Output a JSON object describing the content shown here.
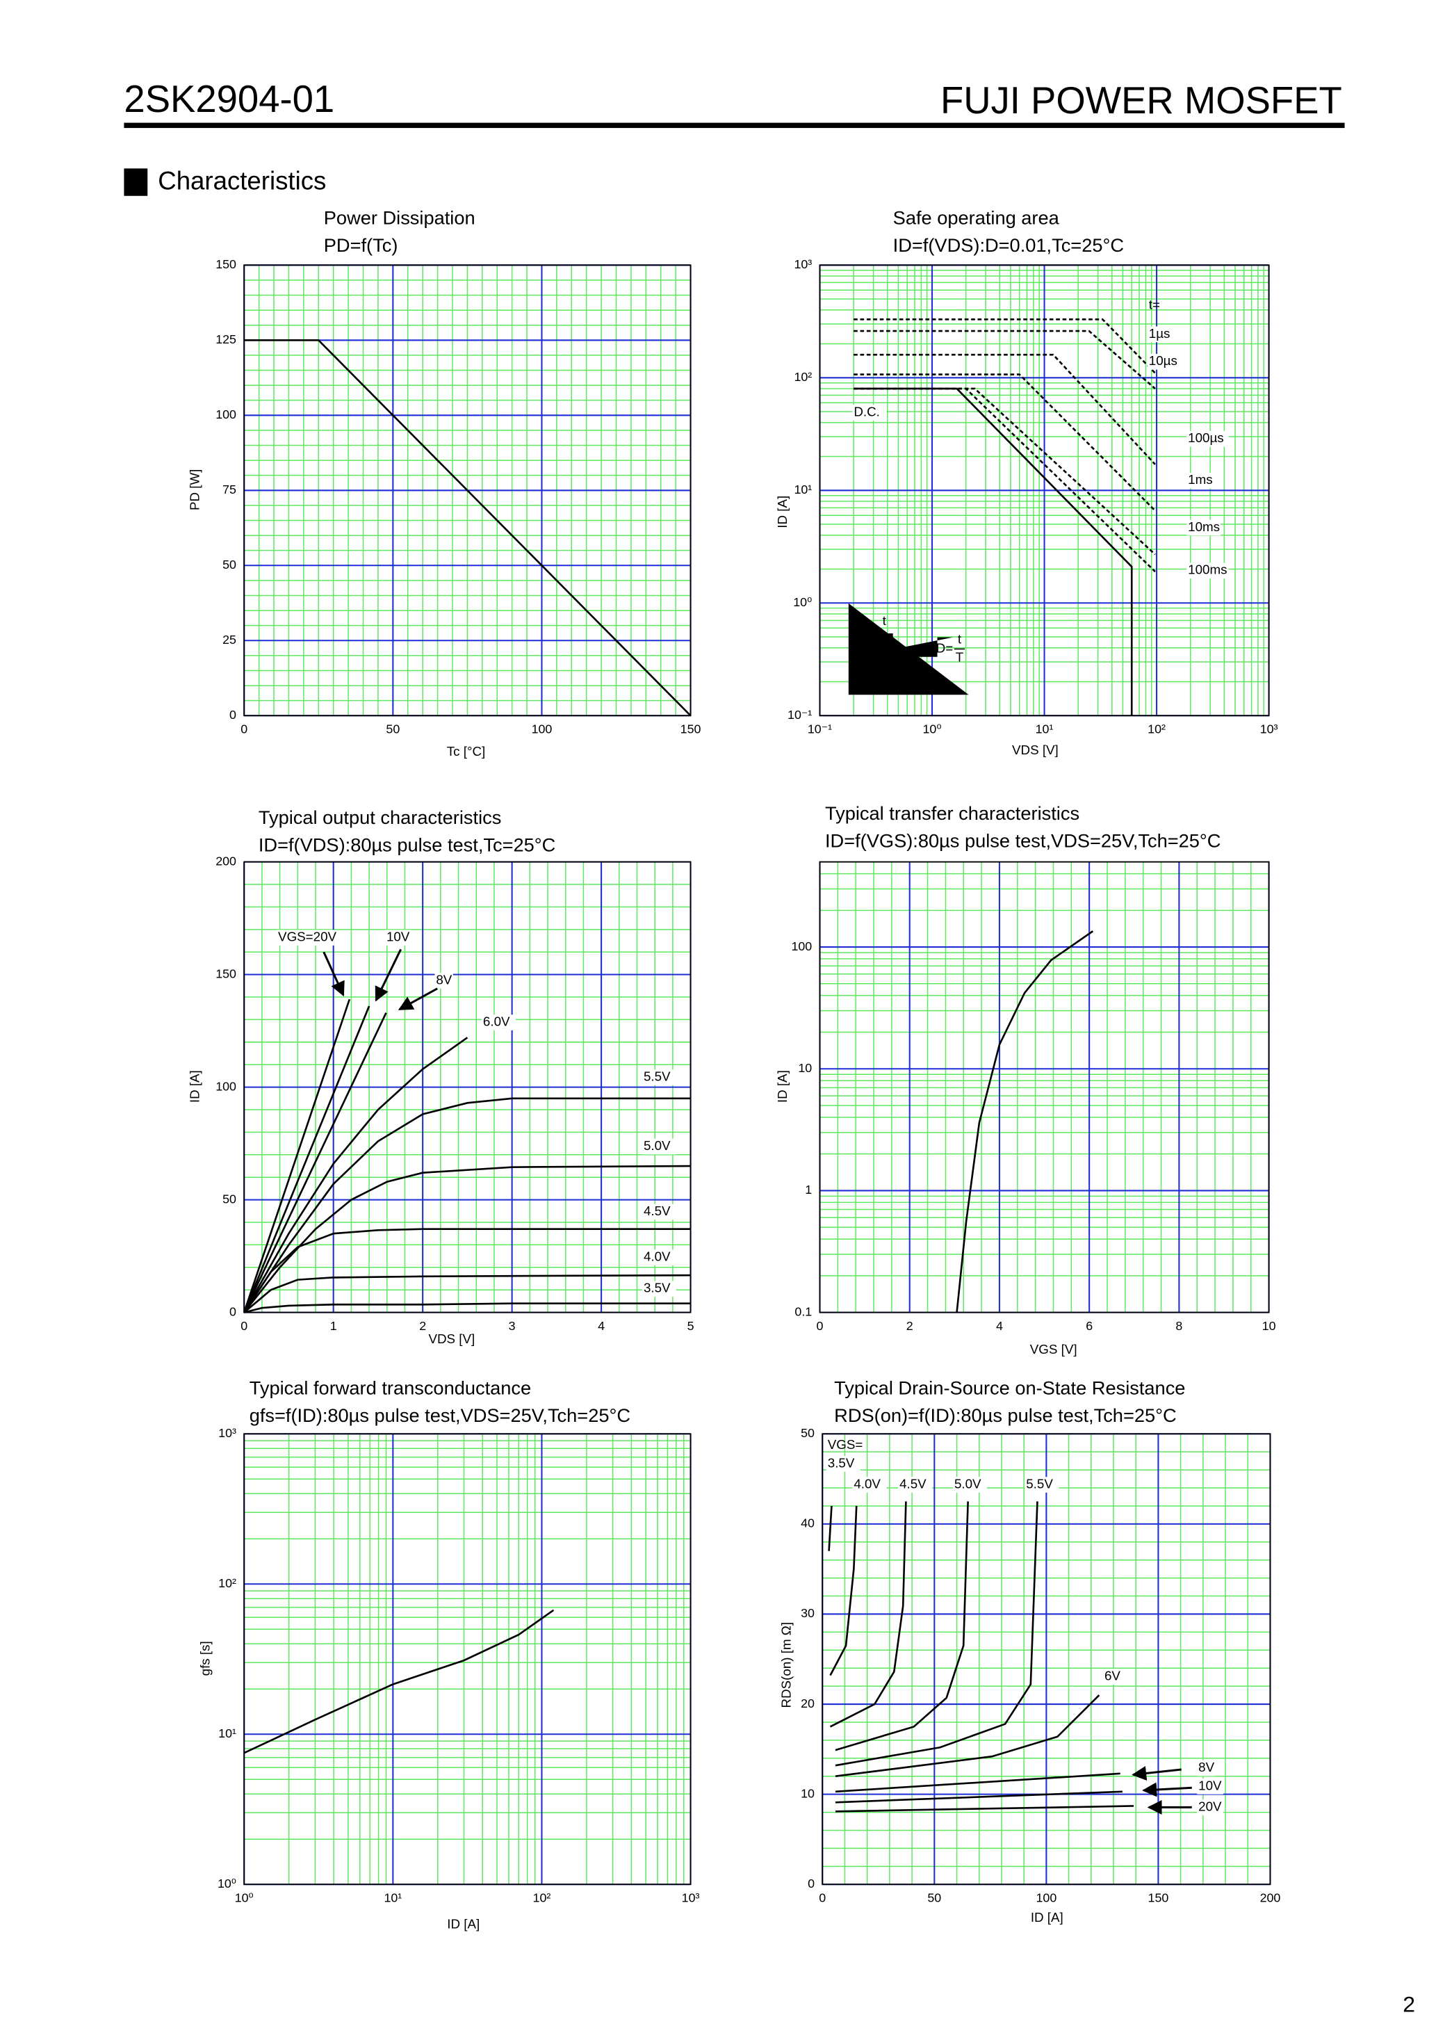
{
  "header": {
    "part": "2SK2904-01",
    "brand": "FUJI POWER MOSFET",
    "section": "Characteristics",
    "page": "2"
  },
  "chart_data": [
    {
      "type": "line",
      "title": "Power Dissipation",
      "subtitle": "PD=f(Tc)",
      "xlabel": "Tc [°C]",
      "ylabel": "PD [W]",
      "xlim": [
        0,
        150
      ],
      "ylim": [
        0,
        150
      ],
      "xticks": [
        0,
        50,
        100,
        150
      ],
      "yticks": [
        0,
        25,
        50,
        75,
        100,
        125,
        150
      ],
      "xlog": false,
      "ylog": false,
      "x_minor": 10,
      "y_minor": 5,
      "grid": true,
      "series": [
        {
          "color": "#000000",
          "x": [
            0,
            25,
            150
          ],
          "values": [
            125,
            125,
            0
          ]
        }
      ]
    },
    {
      "type": "line",
      "title": "Safe operating area",
      "subtitle": "ID=f(VDS):D=0.01,Tc=25°C",
      "xlabel": "VDS [V]",
      "ylabel": "ID [A]",
      "xlim": [
        0.1,
        1000
      ],
      "ylim": [
        0.1,
        1000
      ],
      "xticks": [
        {
          "value": 0.1,
          "label": "10⁻¹"
        },
        {
          "value": 1,
          "label": "10⁰"
        },
        {
          "value": 10,
          "label": "10¹"
        },
        {
          "value": 100,
          "label": "10²"
        },
        {
          "value": 1000,
          "label": "10³"
        }
      ],
      "yticks": [
        {
          "value": 0.1,
          "label": "10⁻¹"
        },
        {
          "value": 1,
          "label": "10⁰"
        },
        {
          "value": 10,
          "label": "10¹"
        },
        {
          "value": 100,
          "label": "10²"
        },
        {
          "value": 1000,
          "label": "10³"
        }
      ],
      "xlog": true,
      "ylog": true,
      "grid": true,
      "annotations": [
        "t="
      ],
      "inset": {
        "pulse": "t",
        "period": "T",
        "duty": "D="
      },
      "series": [
        {
          "name": "D.C.",
          "color": "#000000",
          "dash": false,
          "x": [
            0.2,
            1.66,
            60,
            60
          ],
          "values": [
            80,
            80,
            2.1,
            0.1
          ]
        },
        {
          "name": "1µs",
          "color": "#000000",
          "dash": true,
          "x": [
            0.2,
            33,
            97
          ],
          "values": [
            330,
            330,
            110
          ]
        },
        {
          "name": "10µs",
          "color": "#000000",
          "dash": true,
          "x": [
            0.2,
            25,
            97
          ],
          "values": [
            260,
            260,
            80
          ]
        },
        {
          "name": "100µs",
          "color": "#000000",
          "dash": true,
          "x": [
            0.2,
            12,
            97
          ],
          "values": [
            160,
            160,
            17
          ]
        },
        {
          "name": "1ms",
          "color": "#000000",
          "dash": true,
          "x": [
            0.2,
            6,
            97
          ],
          "values": [
            107,
            107,
            6.6
          ]
        },
        {
          "name": "10ms",
          "color": "#000000",
          "dash": true,
          "x": [
            0.2,
            2.4,
            97
          ],
          "values": [
            80,
            80,
            2.7
          ]
        },
        {
          "name": "100ms",
          "color": "#000000",
          "dash": true,
          "x": [
            0.2,
            2,
            97
          ],
          "values": [
            80,
            80,
            1.9
          ]
        }
      ]
    },
    {
      "type": "line",
      "title": "Typical output characteristics",
      "subtitle": "ID=f(VDS):80µs pulse test,Tc=25°C",
      "xlabel": "VDS [V]",
      "ylabel": "ID [A]",
      "xlim": [
        0,
        5
      ],
      "ylim": [
        0,
        200
      ],
      "xticks": [
        0,
        1,
        2,
        3,
        4,
        5
      ],
      "yticks": [
        0,
        50,
        100,
        150,
        200
      ],
      "xlog": false,
      "ylog": false,
      "x_minor": 5,
      "y_minor": 5,
      "grid": true,
      "series": [
        {
          "name": "3.5V",
          "color": "#000000",
          "x": [
            0,
            0.2,
            0.5,
            1,
            2,
            3,
            5
          ],
          "values": [
            0,
            2,
            3,
            3.5,
            3.5,
            4,
            4
          ]
        },
        {
          "name": "4.0V",
          "color": "#000000",
          "x": [
            0,
            0.3,
            0.6,
            1,
            2,
            5
          ],
          "values": [
            0,
            10,
            14.5,
            15.5,
            16,
            16.5
          ]
        },
        {
          "name": "4.5V",
          "color": "#000000",
          "x": [
            0,
            0.3,
            0.6,
            1,
            1.5,
            2,
            5
          ],
          "values": [
            0,
            18,
            29,
            35,
            36.5,
            37,
            37
          ]
        },
        {
          "name": "5.0V",
          "color": "#000000",
          "x": [
            0,
            0.4,
            0.8,
            1.2,
            1.6,
            2,
            3,
            5
          ],
          "values": [
            0,
            20,
            37,
            50,
            58,
            62,
            64.5,
            65
          ]
        },
        {
          "name": "5.5V",
          "color": "#000000",
          "x": [
            0,
            0.5,
            1,
            1.5,
            2,
            2.5,
            3,
            5
          ],
          "values": [
            0,
            30,
            57,
            76,
            88,
            93,
            95,
            95
          ]
        },
        {
          "name": "6.0V",
          "color": "#000000",
          "x": [
            0,
            0.5,
            1,
            1.5,
            2,
            2.5
          ],
          "values": [
            0,
            35,
            66,
            90,
            108,
            122
          ]
        },
        {
          "name": "8V",
          "color": "#000000",
          "x": [
            0,
            1.59
          ],
          "values": [
            0,
            133
          ]
        },
        {
          "name": "10V",
          "color": "#000000",
          "x": [
            0,
            1.4
          ],
          "values": [
            0,
            136
          ]
        },
        {
          "name": "VGS=20V",
          "color": "#000000",
          "x": [
            0,
            1.18
          ],
          "values": [
            0,
            139
          ]
        }
      ]
    },
    {
      "type": "line",
      "title": "Typical transfer characteristics",
      "subtitle": "ID=f(VGS):80µs pulse test,VDS=25V,Tch=25°C",
      "xlabel": "VGS [V]",
      "ylabel": "ID [A]",
      "xlim": [
        0,
        10
      ],
      "ylim": [
        0.1,
        500
      ],
      "xticks": [
        0,
        2,
        4,
        6,
        8,
        10
      ],
      "yticks": [
        0.1,
        1,
        10,
        100
      ],
      "xlog": false,
      "ylog": true,
      "x_minor": 5,
      "grid": true,
      "series": [
        {
          "color": "#000000",
          "x": [
            3.05,
            3.26,
            3.55,
            4,
            4.56,
            5.15,
            6.08
          ],
          "values": [
            0.1,
            0.56,
            3.6,
            15.8,
            42,
            78,
            135
          ]
        }
      ]
    },
    {
      "type": "line",
      "title": "Typical forward transconductance",
      "subtitle": "gfs=f(ID):80µs pulse test,VDS=25V,Tch=25°C",
      "xlabel": "ID [A]",
      "ylabel": "gfs [s]",
      "xlim": [
        1,
        1000
      ],
      "ylim": [
        1,
        1000
      ],
      "xticks": [
        {
          "value": 1,
          "label": "10⁰"
        },
        {
          "value": 10,
          "label": "10¹"
        },
        {
          "value": 100,
          "label": "10²"
        },
        {
          "value": 1000,
          "label": "10³"
        }
      ],
      "yticks": [
        {
          "value": 1,
          "label": "10⁰"
        },
        {
          "value": 10,
          "label": "10¹"
        },
        {
          "value": 100,
          "label": "10²"
        },
        {
          "value": 1000,
          "label": "10³"
        }
      ],
      "xlog": true,
      "ylog": true,
      "grid": true,
      "series": [
        {
          "color": "#000000",
          "x": [
            1,
            3,
            10,
            30,
            70,
            120
          ],
          "values": [
            7.5,
            12.5,
            21.5,
            31,
            46,
            67
          ]
        }
      ]
    },
    {
      "type": "line",
      "title": "Typical Drain-Source on-State Resistance",
      "subtitle": "RDS(on)=f(ID):80µs pulse test,Tch=25°C",
      "xlabel": "ID [A]",
      "ylabel": "RDS(on) [m Ω]",
      "xlim": [
        0,
        200
      ],
      "ylim": [
        0,
        50
      ],
      "xticks": [
        0,
        50,
        100,
        150,
        200
      ],
      "yticks": [
        0,
        10,
        20,
        30,
        40,
        50
      ],
      "xlog": false,
      "ylog": false,
      "x_minor": 5,
      "y_minor": 5,
      "grid": true,
      "annotations": [
        "VGS="
      ],
      "series": [
        {
          "name": "3.5V",
          "color": "#000000",
          "x": [
            2.9,
            4.1
          ],
          "values": [
            37,
            42
          ]
        },
        {
          "name": "4.0V",
          "color": "#000000",
          "x": [
            3.5,
            10.5,
            14,
            15.2
          ],
          "values": [
            23.2,
            26.5,
            35,
            42
          ]
        },
        {
          "name": "4.5V",
          "color": "#000000",
          "x": [
            3.5,
            23.3,
            32,
            36,
            37.3
          ],
          "values": [
            17.5,
            20,
            23.6,
            30.9,
            42.5
          ]
        },
        {
          "name": "5.0V",
          "color": "#000000",
          "x": [
            5.8,
            40.8,
            55.4,
            63,
            65
          ],
          "values": [
            14.9,
            17.5,
            20.7,
            26.5,
            42.5
          ]
        },
        {
          "name": "5.5V",
          "color": "#000000",
          "x": [
            5.8,
            52.5,
            81.6,
            93,
            96
          ],
          "values": [
            13.2,
            15.2,
            17.8,
            22.2,
            42.5
          ]
        },
        {
          "name": "6V",
          "color": "#000000",
          "x": [
            5.8,
            75.8,
            105,
            123.6
          ],
          "values": [
            12,
            14.2,
            16.4,
            21
          ]
        },
        {
          "name": "8V",
          "color": "#000000",
          "x": [
            5.8,
            133
          ],
          "values": [
            10.3,
            12.3
          ]
        },
        {
          "name": "10V",
          "color": "#000000",
          "x": [
            5.8,
            134
          ],
          "values": [
            9.1,
            10.3
          ]
        },
        {
          "name": "20V",
          "color": "#000000",
          "x": [
            5.8,
            139
          ],
          "values": [
            8.1,
            8.7
          ]
        }
      ]
    }
  ]
}
